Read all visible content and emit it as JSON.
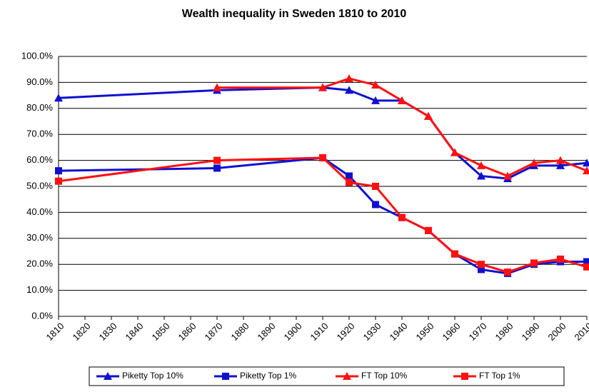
{
  "chart_data": {
    "type": "line",
    "title": "Wealth inequality  in Sweden 1810 to 2010",
    "x": [
      1810,
      1870,
      1910,
      1920,
      1930,
      1940,
      1950,
      1960,
      1970,
      1980,
      1990,
      2000,
      2010
    ],
    "series": [
      {
        "name": "Piketty Top 10%",
        "color": "#1010d0",
        "marker": "triangle",
        "values": [
          84,
          87,
          88,
          87,
          83,
          83,
          77,
          63,
          54,
          53,
          58,
          58,
          59
        ]
      },
      {
        "name": "Piketty Top 1%",
        "color": "#1010d0",
        "marker": "square",
        "values": [
          56,
          57,
          61,
          54,
          43,
          38,
          33,
          24,
          18,
          16.5,
          20,
          21,
          21
        ]
      },
      {
        "name": "FT Top 10%",
        "color": "#ff1010",
        "marker": "triangle",
        "values": [
          null,
          88,
          88,
          91.5,
          89,
          83,
          77,
          63,
          58,
          54,
          59,
          60,
          56
        ]
      },
      {
        "name": "FT Top 1%",
        "color": "#ff1010",
        "marker": "square",
        "values": [
          52,
          60,
          61,
          51.5,
          50,
          38,
          33,
          24,
          20,
          17,
          20.5,
          22,
          19
        ]
      }
    ],
    "xlim": [
      1810,
      2010
    ],
    "xticks": [
      1810,
      1820,
      1830,
      1840,
      1850,
      1860,
      1870,
      1880,
      1890,
      1900,
      1910,
      1920,
      1930,
      1940,
      1950,
      1960,
      1970,
      1980,
      1990,
      2000,
      2010
    ],
    "ylim": [
      0,
      100
    ],
    "yticks": [
      {
        "value": 0,
        "label": "0.0%"
      },
      {
        "value": 10,
        "label": "10.0%"
      },
      {
        "value": 20,
        "label": "20.0%"
      },
      {
        "value": 30,
        "label": "30.0%"
      },
      {
        "value": 40,
        "label": "40.0%"
      },
      {
        "value": 50,
        "label": "50.0%"
      },
      {
        "value": 60,
        "label": "60.0%"
      },
      {
        "value": 70,
        "label": "70.0%"
      },
      {
        "value": 80,
        "label": "80.0%"
      },
      {
        "value": 90,
        "label": "90.0%"
      },
      {
        "value": 100,
        "label": "100.0%"
      }
    ],
    "grid": true,
    "legend": "bottom"
  }
}
